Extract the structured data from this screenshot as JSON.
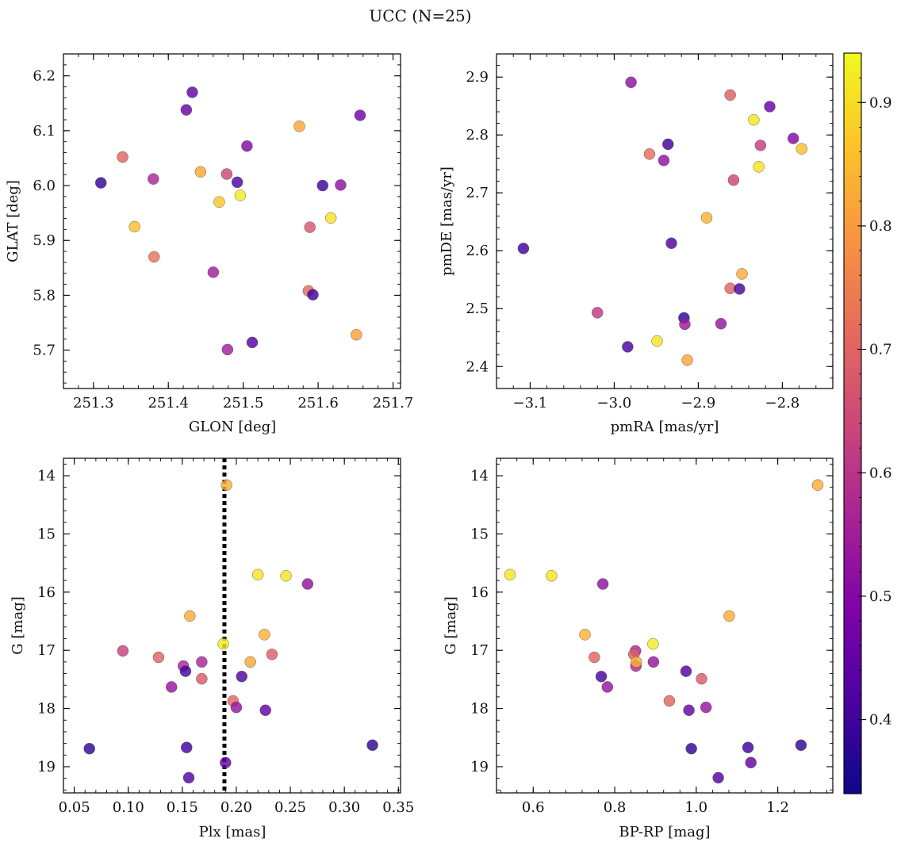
{
  "figure": {
    "title": "UCC (N=25)"
  },
  "colorbar": {
    "range": [
      0.34,
      0.94
    ],
    "ticks": [
      0.4,
      0.5,
      0.6,
      0.7,
      0.8,
      0.9
    ],
    "tick_labels": [
      "0.4",
      "0.5",
      "0.6",
      "0.7",
      "0.8",
      "0.9"
    ],
    "colormap": "plasma"
  },
  "chart_data": [
    {
      "type": "scatter",
      "panel": "top-left",
      "xlabel": "GLON [deg]",
      "ylabel": "GLAT [deg]",
      "xlim": [
        251.26,
        251.71
      ],
      "ylim": [
        5.63,
        6.24
      ],
      "xticks": [
        251.3,
        251.4,
        251.5,
        251.6,
        251.7
      ],
      "xtick_labels": [
        "251.3",
        "251.4",
        "251.5",
        "251.6",
        "251.7"
      ],
      "yticks": [
        5.7,
        5.8,
        5.9,
        6.0,
        6.1,
        6.2
      ],
      "ytick_labels": [
        "5.7",
        "5.8",
        "5.9",
        "6.0",
        "6.1",
        "6.2"
      ],
      "x": [
        251.432,
        251.424,
        251.505,
        251.656,
        251.575,
        251.339,
        251.31,
        251.38,
        251.443,
        251.478,
        251.492,
        251.496,
        251.606,
        251.63,
        251.468,
        251.617,
        251.355,
        251.589,
        251.381,
        251.46,
        251.587,
        251.593,
        251.651,
        251.479,
        251.512
      ],
      "y": [
        6.17,
        6.138,
        6.072,
        6.128,
        6.108,
        6.052,
        6.005,
        6.012,
        6.025,
        6.021,
        6.006,
        5.982,
        6.0,
        6.001,
        5.97,
        5.941,
        5.925,
        5.924,
        5.87,
        5.842,
        5.808,
        5.801,
        5.728,
        5.701,
        5.714
      ],
      "color": [
        0.45,
        0.46,
        0.5,
        0.47,
        0.82,
        0.7,
        0.38,
        0.57,
        0.82,
        0.64,
        0.42,
        0.92,
        0.4,
        0.52,
        0.87,
        0.91,
        0.86,
        0.67,
        0.73,
        0.55,
        0.71,
        0.4,
        0.81,
        0.55,
        0.43
      ]
    },
    {
      "type": "scatter",
      "panel": "top-right",
      "xlabel": "pmRA [mas/yr]",
      "ylabel": "pmDE [mas/yr]",
      "xlim": [
        -3.14,
        -2.74
      ],
      "ylim": [
        2.362,
        2.94
      ],
      "xticks": [
        -3.1,
        -3.0,
        -2.9,
        -2.8
      ],
      "xtick_labels": [
        "−3.1",
        "−3.0",
        "−2.9",
        "−2.8"
      ],
      "yticks": [
        2.4,
        2.5,
        2.6,
        2.7,
        2.8,
        2.9
      ],
      "ytick_labels": [
        "2.4",
        "2.5",
        "2.6",
        "2.7",
        "2.8",
        "2.9"
      ],
      "x": [
        -2.98,
        -2.862,
        -2.815,
        -2.834,
        -2.787,
        -2.777,
        -2.936,
        -2.958,
        -2.941,
        -2.826,
        -2.828,
        -2.858,
        -2.89,
        -2.932,
        -3.108,
        -2.848,
        -2.862,
        -2.851,
        -3.02,
        -2.917,
        -2.916,
        -2.873,
        -2.984,
        -2.949,
        -2.913
      ],
      "y": [
        2.891,
        2.869,
        2.849,
        2.826,
        2.794,
        2.776,
        2.784,
        2.767,
        2.756,
        2.782,
        2.745,
        2.722,
        2.657,
        2.613,
        2.604,
        2.56,
        2.535,
        2.534,
        2.493,
        2.484,
        2.473,
        2.474,
        2.434,
        2.444,
        2.411
      ],
      "color": [
        0.52,
        0.69,
        0.45,
        0.91,
        0.5,
        0.86,
        0.4,
        0.72,
        0.52,
        0.62,
        0.91,
        0.64,
        0.84,
        0.42,
        0.4,
        0.83,
        0.7,
        0.41,
        0.61,
        0.38,
        0.54,
        0.53,
        0.41,
        0.91,
        0.82
      ]
    },
    {
      "type": "scatter",
      "panel": "bottom-left",
      "xlabel": "Plx [mas]",
      "ylabel": "G [mag]",
      "xlim": [
        0.04,
        0.352
      ],
      "ylim": [
        19.45,
        13.7
      ],
      "xticks": [
        0.05,
        0.1,
        0.15,
        0.2,
        0.25,
        0.3,
        0.35
      ],
      "xtick_labels": [
        "0.05",
        "0.10",
        "0.15",
        "0.20",
        "0.25",
        "0.30",
        "0.35"
      ],
      "yticks": [
        14,
        15,
        16,
        17,
        18,
        19
      ],
      "ytick_labels": [
        "14",
        "15",
        "16",
        "17",
        "18",
        "19"
      ],
      "vline": 0.189,
      "x": [
        0.191,
        0.22,
        0.246,
        0.266,
        0.157,
        0.226,
        0.188,
        0.095,
        0.128,
        0.151,
        0.168,
        0.213,
        0.233,
        0.153,
        0.168,
        0.205,
        0.14,
        0.197,
        0.2,
        0.227,
        0.064,
        0.154,
        0.19,
        0.326,
        0.156
      ],
      "y": [
        14.16,
        15.7,
        15.72,
        15.86,
        16.41,
        16.73,
        16.89,
        17.01,
        17.12,
        17.27,
        17.2,
        17.2,
        17.07,
        17.36,
        17.49,
        17.45,
        17.63,
        17.87,
        17.98,
        18.03,
        18.69,
        18.67,
        18.93,
        18.63,
        19.19
      ],
      "color": [
        0.83,
        0.91,
        0.91,
        0.52,
        0.83,
        0.84,
        0.92,
        0.63,
        0.7,
        0.57,
        0.57,
        0.82,
        0.69,
        0.41,
        0.68,
        0.42,
        0.53,
        0.7,
        0.53,
        0.45,
        0.38,
        0.4,
        0.45,
        0.38,
        0.42
      ]
    },
    {
      "type": "scatter",
      "panel": "bottom-right",
      "xlabel": "BP-RP [mag]",
      "ylabel": "G [mag]",
      "xlim": [
        0.51,
        1.335
      ],
      "ylim": [
        19.45,
        13.7
      ],
      "xticks": [
        0.6,
        0.8,
        1.0,
        1.2
      ],
      "xtick_labels": [
        "0.6",
        "0.8",
        "1.0",
        "1.2"
      ],
      "yticks": [
        14,
        15,
        16,
        17,
        18,
        19
      ],
      "ytick_labels": [
        "14",
        "15",
        "16",
        "17",
        "18",
        "19"
      ],
      "x": [
        1.298,
        0.543,
        0.645,
        0.771,
        1.081,
        0.727,
        0.894,
        0.851,
        0.75,
        0.847,
        0.852,
        0.853,
        0.895,
        0.975,
        1.013,
        0.767,
        0.782,
        0.934,
        1.024,
        0.982,
        0.988,
        1.127,
        1.134,
        1.257,
        1.054
      ],
      "y": [
        14.16,
        15.7,
        15.72,
        15.86,
        16.41,
        16.73,
        16.89,
        17.01,
        17.12,
        17.07,
        17.27,
        17.2,
        17.2,
        17.36,
        17.49,
        17.45,
        17.63,
        17.87,
        17.98,
        18.03,
        18.69,
        18.67,
        18.93,
        18.63,
        19.19
      ],
      "color": [
        0.83,
        0.91,
        0.91,
        0.52,
        0.83,
        0.84,
        0.92,
        0.57,
        0.7,
        0.69,
        0.57,
        0.83,
        0.53,
        0.42,
        0.68,
        0.41,
        0.53,
        0.7,
        0.53,
        0.45,
        0.38,
        0.4,
        0.45,
        0.38,
        0.42
      ]
    }
  ]
}
